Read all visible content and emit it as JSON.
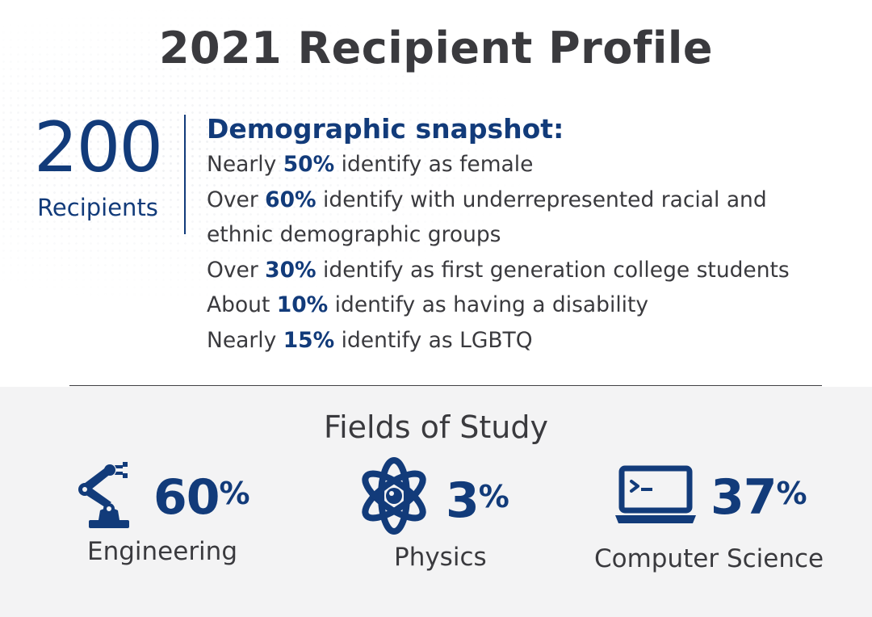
{
  "header": {
    "title": "2021 Recipient Profile"
  },
  "summary": {
    "count": "200",
    "count_label": "Recipients"
  },
  "snapshot": {
    "heading": "Demographic snapshot:",
    "items": [
      {
        "pre": "Nearly ",
        "pct": "50%",
        "post": " identify as female"
      },
      {
        "pre": "Over ",
        "pct": "60%",
        "post": " identify with underrepresented racial and"
      },
      {
        "pre": "",
        "pct": "",
        "post": "ethnic demographic groups"
      },
      {
        "pre": "Over ",
        "pct": "30%",
        "post": " identify as first generation college students"
      },
      {
        "pre": "About ",
        "pct": "10%",
        "post": " identify as having a disability"
      },
      {
        "pre": "Nearly ",
        "pct": "15%",
        "post": " identify as LGBTQ"
      }
    ]
  },
  "fields": {
    "title": "Fields of Study",
    "items": [
      {
        "number": "60",
        "unit": "%",
        "label": "Engineering",
        "icon": "robot-arm-icon"
      },
      {
        "number": "3",
        "unit": "%",
        "label": "Physics",
        "icon": "atom-icon"
      },
      {
        "number": "37",
        "unit": "%",
        "label": "Computer Science",
        "icon": "laptop-terminal-icon"
      }
    ]
  },
  "colors": {
    "accent": "#123b7a",
    "text": "#3a3a3e",
    "panel": "#f3f3f4"
  }
}
